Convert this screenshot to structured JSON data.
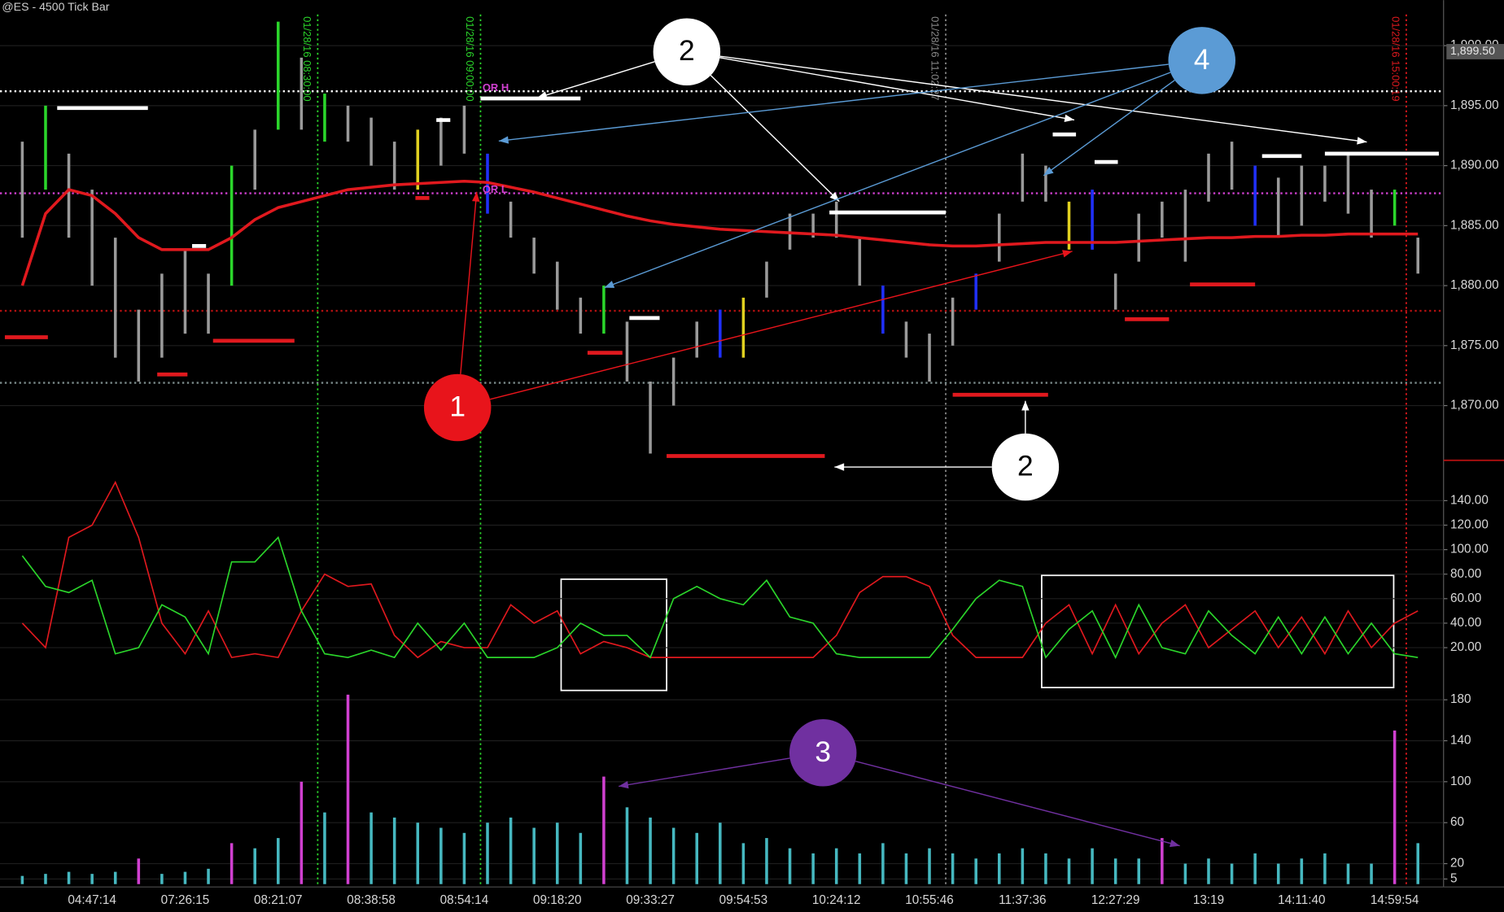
{
  "chart_data": [
    {
      "type": "range",
      "title": "@ES - 4500 Tick Bar",
      "high": [
        1892,
        1895,
        1891,
        1888,
        1884,
        1878,
        1881,
        1883,
        1881,
        1890,
        1893,
        1902,
        1899,
        1896,
        1895,
        1894,
        1892,
        1893,
        1894,
        1895,
        1891,
        1887,
        1884,
        1882,
        1879,
        1880,
        1877,
        1872,
        1874,
        1877,
        1878,
        1879,
        1882,
        1886,
        1886,
        1887,
        1884,
        1880,
        1877,
        1876,
        1879,
        1881,
        1886,
        1891,
        1890,
        1887,
        1888,
        1881,
        1886,
        1887,
        1888,
        1891,
        1892,
        1890,
        1889,
        1890,
        1890,
        1891,
        1888,
        1888,
        1884
      ],
      "low": [
        1884,
        1888,
        1884,
        1880,
        1874,
        1872,
        1874,
        1876,
        1876,
        1880,
        1888,
        1893,
        1893,
        1892,
        1892,
        1890,
        1888,
        1888,
        1890,
        1891,
        1886,
        1884,
        1881,
        1878,
        1876,
        1876,
        1872,
        1866,
        1870,
        1874,
        1874,
        1874,
        1879,
        1883,
        1884,
        1884,
        1880,
        1876,
        1874,
        1872,
        1875,
        1878,
        1882,
        1887,
        1887,
        1883,
        1883,
        1878,
        1882,
        1884,
        1882,
        1887,
        1888,
        1885,
        1884,
        1885,
        1887,
        1886,
        1884,
        1885,
        1881
      ],
      "colors": [
        "#9a9a9a",
        "#2bd62b",
        "#9a9a9a",
        "#9a9a9a",
        "#9a9a9a",
        "#9a9a9a",
        "#9a9a9a",
        "#9a9a9a",
        "#9a9a9a",
        "#2bd62b",
        "#9a9a9a",
        "#2bd62b",
        "#9a9a9a",
        "#2bd62b",
        "#9a9a9a",
        "#9a9a9a",
        "#9a9a9a",
        "#e0d020",
        "#9a9a9a",
        "#9a9a9a",
        "#2030ff",
        "#9a9a9a",
        "#9a9a9a",
        "#9a9a9a",
        "#9a9a9a",
        "#2bd62b",
        "#9a9a9a",
        "#9a9a9a",
        "#9a9a9a",
        "#9a9a9a",
        "#2030ff",
        "#e0d020",
        "#9a9a9a",
        "#9a9a9a",
        "#9a9a9a",
        "#9a9a9a",
        "#9a9a9a",
        "#2030ff",
        "#9a9a9a",
        "#9a9a9a",
        "#9a9a9a",
        "#2030ff",
        "#9a9a9a",
        "#9a9a9a",
        "#9a9a9a",
        "#e0d020",
        "#2030ff",
        "#9a9a9a",
        "#9a9a9a",
        "#9a9a9a",
        "#9a9a9a",
        "#9a9a9a",
        "#9a9a9a",
        "#2030ff",
        "#9a9a9a",
        "#9a9a9a",
        "#9a9a9a",
        "#9a9a9a",
        "#9a9a9a",
        "#2bd62b",
        "#9a9a9a"
      ],
      "line": {
        "color": "#e0191e",
        "values": [
          1880,
          1886,
          1888,
          1887.5,
          1886,
          1884,
          1883,
          1883,
          1883,
          1884,
          1885.5,
          1886.5,
          1887,
          1887.5,
          1888,
          1888.2,
          1888.4,
          1888.5,
          1888.6,
          1888.7,
          1888.6,
          1888.2,
          1887.8,
          1887.3,
          1886.8,
          1886.3,
          1885.8,
          1885.4,
          1885.1,
          1884.9,
          1884.7,
          1884.6,
          1884.5,
          1884.4,
          1884.3,
          1884.2,
          1884,
          1883.8,
          1883.6,
          1883.4,
          1883.3,
          1883.3,
          1883.4,
          1883.5,
          1883.6,
          1883.6,
          1883.6,
          1883.6,
          1883.7,
          1883.8,
          1883.9,
          1884,
          1884,
          1884.1,
          1884.1,
          1884.2,
          1884.2,
          1884.3,
          1884.3,
          1884.3,
          1884.3
        ]
      },
      "levels": [
        {
          "value": 1896.2,
          "color": "#ffffff"
        },
        {
          "value": 1887.7,
          "color": "#d040d0"
        },
        {
          "value": 1877.9,
          "color": "#b01010"
        },
        {
          "value": 1871.9,
          "color": "#7a8a8a"
        }
      ],
      "segments": [
        {
          "from": 1.5,
          "to": 5.4,
          "value": 1894.8,
          "color": "#ffffff"
        },
        {
          "from": 19.7,
          "to": 24,
          "value": 1895.6,
          "color": "#ffffff"
        },
        {
          "from": 34.7,
          "to": 39.7,
          "value": 1886.1,
          "color": "#ffffff"
        },
        {
          "from": 56,
          "to": 60.9,
          "value": 1891,
          "color": "#ffffff"
        },
        {
          "from": 44.3,
          "to": 45.3,
          "value": 1892.6,
          "color": "#ffffff"
        },
        {
          "from": 46.1,
          "to": 47.1,
          "value": 1890.3,
          "color": "#ffffff"
        },
        {
          "from": 53.3,
          "to": 55,
          "value": 1890.8,
          "color": "#ffffff"
        },
        {
          "from": 7.3,
          "to": 7.9,
          "value": 1883.3,
          "color": "#ffffff"
        },
        {
          "from": 17.8,
          "to": 18.4,
          "value": 1893.8,
          "color": "#ffffff"
        },
        {
          "from": 26.1,
          "to": 27.4,
          "value": 1877.3,
          "color": "#ffffff"
        },
        {
          "from": -0.75,
          "to": 1.1,
          "value": 1875.7,
          "color": "#e0191e"
        },
        {
          "from": 8.2,
          "to": 11.7,
          "value": 1875.4,
          "color": "#e0191e"
        },
        {
          "from": 5.8,
          "to": 7.1,
          "value": 1872.6,
          "color": "#e0191e"
        },
        {
          "from": 24.3,
          "to": 25.8,
          "value": 1874.4,
          "color": "#e0191e"
        },
        {
          "from": 27.7,
          "to": 34.5,
          "value": 1865.8,
          "color": "#e0191e"
        },
        {
          "from": 40,
          "to": 44.1,
          "value": 1870.9,
          "color": "#e0191e"
        },
        {
          "from": 47.4,
          "to": 49.3,
          "value": 1877.2,
          "color": "#e0191e"
        },
        {
          "from": 50.2,
          "to": 53,
          "value": 1880.1,
          "color": "#e0191e"
        },
        {
          "from": 16.9,
          "to": 17.5,
          "value": 1887.3,
          "color": "#e0191e"
        }
      ],
      "markers": [
        {
          "x": 12.7,
          "label": "01/28/16 08:30:00",
          "color": "#2bd62b"
        },
        {
          "x": 19.7,
          "label": "01/28/16 09:00:00",
          "color": "#2bd62b"
        },
        {
          "x": 39.7,
          "label": "01/28/16 11:02:27",
          "color": "#8a8a8a"
        },
        {
          "x": 59.5,
          "label": "01/28/16 15:00:19",
          "color": "#e0191e"
        }
      ],
      "tags": [
        "OR H",
        "OR L"
      ],
      "last_price": {
        "value": 1899.5,
        "label": "1,899.50"
      },
      "ylim": [
        1865.6,
        1902.6
      ],
      "yticks": [
        {
          "value": 1870,
          "label": "1,870.00"
        },
        {
          "value": 1875,
          "label": "1,875.00"
        },
        {
          "value": 1880,
          "label": "1,880.00"
        },
        {
          "value": 1885,
          "label": "1,885.00"
        },
        {
          "value": 1890,
          "label": "1,890.00"
        },
        {
          "value": 1895,
          "label": "1,895.00"
        },
        {
          "value": 1900,
          "label": "1,900.00"
        }
      ],
      "grid": true,
      "annotations": [
        {
          "text": "1",
          "color": "#e8141b",
          "text_color": "#ffffff"
        },
        {
          "text": "2",
          "color": "#ffffff",
          "text_color": "#000000"
        },
        {
          "text": "4",
          "color": "#5b9bd5",
          "text_color": "#ffffff"
        },
        {
          "text": "2",
          "color": "#ffffff",
          "text_color": "#000000"
        },
        {
          "text": "3",
          "color": "#7030a0",
          "text_color": "#ffffff"
        }
      ]
    },
    {
      "type": "line",
      "series": [
        {
          "color": "#e0191e",
          "values": [
            40,
            20,
            110,
            120,
            155,
            110,
            40,
            15,
            50,
            12,
            15,
            12,
            50,
            80,
            70,
            72,
            30,
            12,
            25,
            20,
            20,
            55,
            40,
            50,
            15,
            25,
            20,
            12,
            12,
            12,
            12,
            12,
            12,
            12,
            12,
            30,
            65,
            78,
            78,
            70,
            30,
            12,
            12,
            12,
            40,
            55,
            15,
            55,
            15,
            40,
            55,
            20,
            35,
            50,
            20,
            45,
            15,
            50,
            20,
            40,
            50
          ]
        },
        {
          "color": "#2bd62b",
          "values": [
            95,
            70,
            65,
            75,
            15,
            20,
            55,
            45,
            15,
            90,
            90,
            110,
            50,
            15,
            12,
            18,
            12,
            40,
            18,
            40,
            12,
            12,
            12,
            20,
            40,
            30,
            30,
            12,
            60,
            70,
            60,
            55,
            75,
            45,
            40,
            15,
            12,
            12,
            12,
            12,
            35,
            60,
            75,
            70,
            12,
            35,
            50,
            12,
            55,
            20,
            15,
            50,
            30,
            15,
            45,
            15,
            45,
            15,
            40,
            15,
            12
          ]
        }
      ],
      "ylim": [
        -11,
        169
      ],
      "yticks": [
        {
          "value": 20,
          "label": "20.00"
        },
        {
          "value": 40,
          "label": "40.00"
        },
        {
          "value": 60,
          "label": "60.00"
        },
        {
          "value": 80,
          "label": "80.00"
        },
        {
          "value": 100,
          "label": "100.00"
        },
        {
          "value": 120,
          "label": "120.00"
        },
        {
          "value": 140,
          "label": "140.00"
        }
      ],
      "grid": true
    },
    {
      "type": "bar",
      "categories": [
        null,
        null,
        null,
        "04:47:14",
        null,
        null,
        null,
        "07:26:15",
        null,
        null,
        null,
        "08:21:07",
        null,
        null,
        null,
        "08:38:58",
        null,
        null,
        null,
        "08:54:14",
        null,
        null,
        null,
        "09:18:20",
        null,
        null,
        null,
        "09:33:27",
        null,
        null,
        null,
        "09:54:53",
        null,
        null,
        null,
        "10:24:12",
        null,
        null,
        null,
        "10:55:46",
        null,
        null,
        null,
        "11:37:36",
        null,
        null,
        null,
        "12:27:29",
        null,
        null,
        null,
        "13:19",
        null,
        null,
        null,
        "14:11:40",
        null,
        null,
        null,
        "14:59:54",
        null
      ],
      "values": [
        8,
        10,
        12,
        10,
        12,
        25,
        10,
        12,
        15,
        40,
        35,
        45,
        100,
        70,
        185,
        70,
        65,
        60,
        55,
        50,
        60,
        65,
        55,
        60,
        50,
        105,
        75,
        65,
        55,
        50,
        60,
        40,
        45,
        35,
        30,
        35,
        30,
        40,
        30,
        35,
        30,
        25,
        30,
        35,
        30,
        25,
        35,
        25,
        25,
        45,
        20,
        25,
        20,
        30,
        20,
        25,
        30,
        20,
        20,
        150,
        40
      ],
      "colors": [
        "#46b8c0",
        "#46b8c0",
        "#46b8c0",
        "#46b8c0",
        "#46b8c0",
        "#d040d0",
        "#46b8c0",
        "#46b8c0",
        "#46b8c0",
        "#d040d0",
        "#46b8c0",
        "#46b8c0",
        "#d040d0",
        "#46b8c0",
        "#d040d0",
        "#46b8c0",
        "#46b8c0",
        "#46b8c0",
        "#46b8c0",
        "#46b8c0",
        "#46b8c0",
        "#46b8c0",
        "#46b8c0",
        "#46b8c0",
        "#46b8c0",
        "#d040d0",
        "#46b8c0",
        "#46b8c0",
        "#46b8c0",
        "#46b8c0",
        "#46b8c0",
        "#46b8c0",
        "#46b8c0",
        "#46b8c0",
        "#46b8c0",
        "#46b8c0",
        "#46b8c0",
        "#46b8c0",
        "#46b8c0",
        "#46b8c0",
        "#46b8c0",
        "#46b8c0",
        "#46b8c0",
        "#46b8c0",
        "#46b8c0",
        "#46b8c0",
        "#46b8c0",
        "#46b8c0",
        "#46b8c0",
        "#d040d0",
        "#46b8c0",
        "#46b8c0",
        "#46b8c0",
        "#46b8c0",
        "#46b8c0",
        "#46b8c0",
        "#46b8c0",
        "#46b8c0",
        "#46b8c0",
        "#d040d0",
        "#46b8c0"
      ],
      "ylim": [
        0,
        191
      ],
      "yticks": [
        5,
        20,
        60,
        100,
        140,
        180
      ],
      "grid": true
    }
  ]
}
